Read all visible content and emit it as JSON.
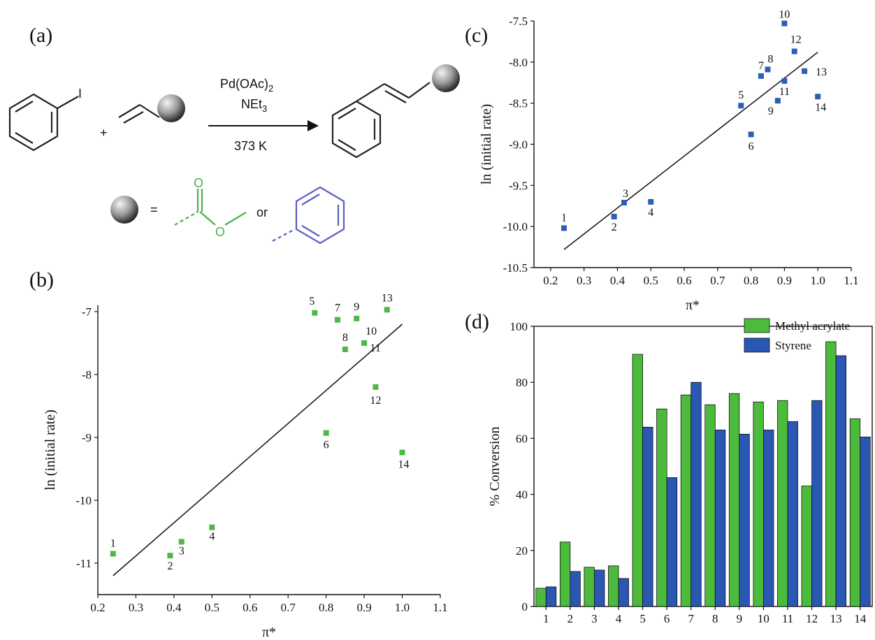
{
  "panels": {
    "a": {
      "label": "(a)",
      "catalyst": "Pd(OAc)",
      "catalyst_sub": "2",
      "base": "NEt",
      "base_sub": "3",
      "temperature": "373 K",
      "plus": "+",
      "equals": "=",
      "or": "or",
      "colors": {
        "acrylate": "#4caf50",
        "styrene": "#5b5fbf"
      }
    }
  },
  "chart_data": [
    {
      "panel": "(b)",
      "type": "scatter",
      "xlabel": "π*",
      "ylabel": "ln (initial rate)",
      "xlim": [
        0.2,
        1.1
      ],
      "ylim": [
        -11.5,
        -6.9
      ],
      "xticks": [
        "0.2",
        "0.3",
        "0.4",
        "0.5",
        "0.6",
        "0.7",
        "0.8",
        "0.9",
        "1.0",
        "1.1"
      ],
      "yticks": [
        "-11",
        "-10",
        "-9",
        "-8",
        "-7"
      ],
      "color": "#4db848",
      "points": [
        {
          "label": "1",
          "x": 0.24,
          "y": -10.85
        },
        {
          "label": "2",
          "x": 0.39,
          "y": -10.88
        },
        {
          "label": "3",
          "x": 0.42,
          "y": -10.66
        },
        {
          "label": "4",
          "x": 0.5,
          "y": -10.43
        },
        {
          "label": "5",
          "x": 0.77,
          "y": -7.02
        },
        {
          "label": "6",
          "x": 0.8,
          "y": -8.93
        },
        {
          "label": "7",
          "x": 0.83,
          "y": -7.13
        },
        {
          "label": "8",
          "x": 0.85,
          "y": -7.6
        },
        {
          "label": "9",
          "x": 0.88,
          "y": -7.11
        },
        {
          "label": "10",
          "x": 0.9,
          "y": -7.5
        },
        {
          "label": "11",
          "x": 0.9,
          "y": -7.5
        },
        {
          "label": "12",
          "x": 0.93,
          "y": -8.2
        },
        {
          "label": "13",
          "x": 0.96,
          "y": -6.97
        },
        {
          "label": "14",
          "x": 1.0,
          "y": -9.24
        }
      ],
      "fit": {
        "x": [
          0.24,
          1.0
        ],
        "y": [
          -11.2,
          -7.2
        ]
      }
    },
    {
      "panel": "(c)",
      "type": "scatter",
      "xlabel": "π*",
      "ylabel": "ln (initial rate)",
      "xlim": [
        0.15,
        1.1
      ],
      "ylim": [
        -10.5,
        -7.5
      ],
      "xticks": [
        "0.2",
        "0.3",
        "0.4",
        "0.5",
        "0.6",
        "0.7",
        "0.8",
        "0.9",
        "1.0",
        "1.1"
      ],
      "yticks": [
        "-10.5",
        "-10.0",
        "-9.5",
        "-9.0",
        "-8.5",
        "-8.0",
        "-7.5"
      ],
      "color": "#2e5db8",
      "points": [
        {
          "label": "1",
          "x": 0.24,
          "y": -10.02
        },
        {
          "label": "2",
          "x": 0.39,
          "y": -9.88
        },
        {
          "label": "3",
          "x": 0.42,
          "y": -9.71
        },
        {
          "label": "4",
          "x": 0.5,
          "y": -9.7
        },
        {
          "label": "5",
          "x": 0.77,
          "y": -8.53
        },
        {
          "label": "6",
          "x": 0.8,
          "y": -8.88
        },
        {
          "label": "7",
          "x": 0.83,
          "y": -8.17
        },
        {
          "label": "8",
          "x": 0.85,
          "y": -8.09
        },
        {
          "label": "9",
          "x": 0.88,
          "y": -8.47
        },
        {
          "label": "10",
          "x": 0.9,
          "y": -7.53
        },
        {
          "label": "11",
          "x": 0.9,
          "y": -8.23
        },
        {
          "label": "12",
          "x": 0.93,
          "y": -7.87
        },
        {
          "label": "13",
          "x": 0.96,
          "y": -8.11
        },
        {
          "label": "14",
          "x": 1.0,
          "y": -8.42
        }
      ],
      "fit": {
        "x": [
          0.24,
          1.0
        ],
        "y": [
          -10.28,
          -7.88
        ]
      }
    },
    {
      "panel": "(d)",
      "type": "bar",
      "ylabel": "% Conversion",
      "ylim": [
        0,
        100
      ],
      "yticks": [
        "0",
        "20",
        "40",
        "60",
        "80",
        "100"
      ],
      "categories": [
        "1",
        "2",
        "3",
        "4",
        "5",
        "6",
        "7",
        "8",
        "9",
        "10",
        "11",
        "12",
        "13",
        "14"
      ],
      "series": [
        {
          "name": "Methyl acrylate",
          "color": "#4cbb3c",
          "values": [
            6.5,
            23,
            14,
            14.5,
            90,
            70.5,
            75.5,
            72,
            76,
            73,
            73.5,
            43,
            94.5,
            67
          ]
        },
        {
          "name": "Styrene",
          "color": "#2957b3",
          "values": [
            7,
            12.5,
            13,
            10,
            64,
            46,
            80,
            63,
            61.5,
            63,
            66,
            73.5,
            89.5,
            60.5
          ]
        }
      ],
      "legend": "top-right"
    }
  ]
}
